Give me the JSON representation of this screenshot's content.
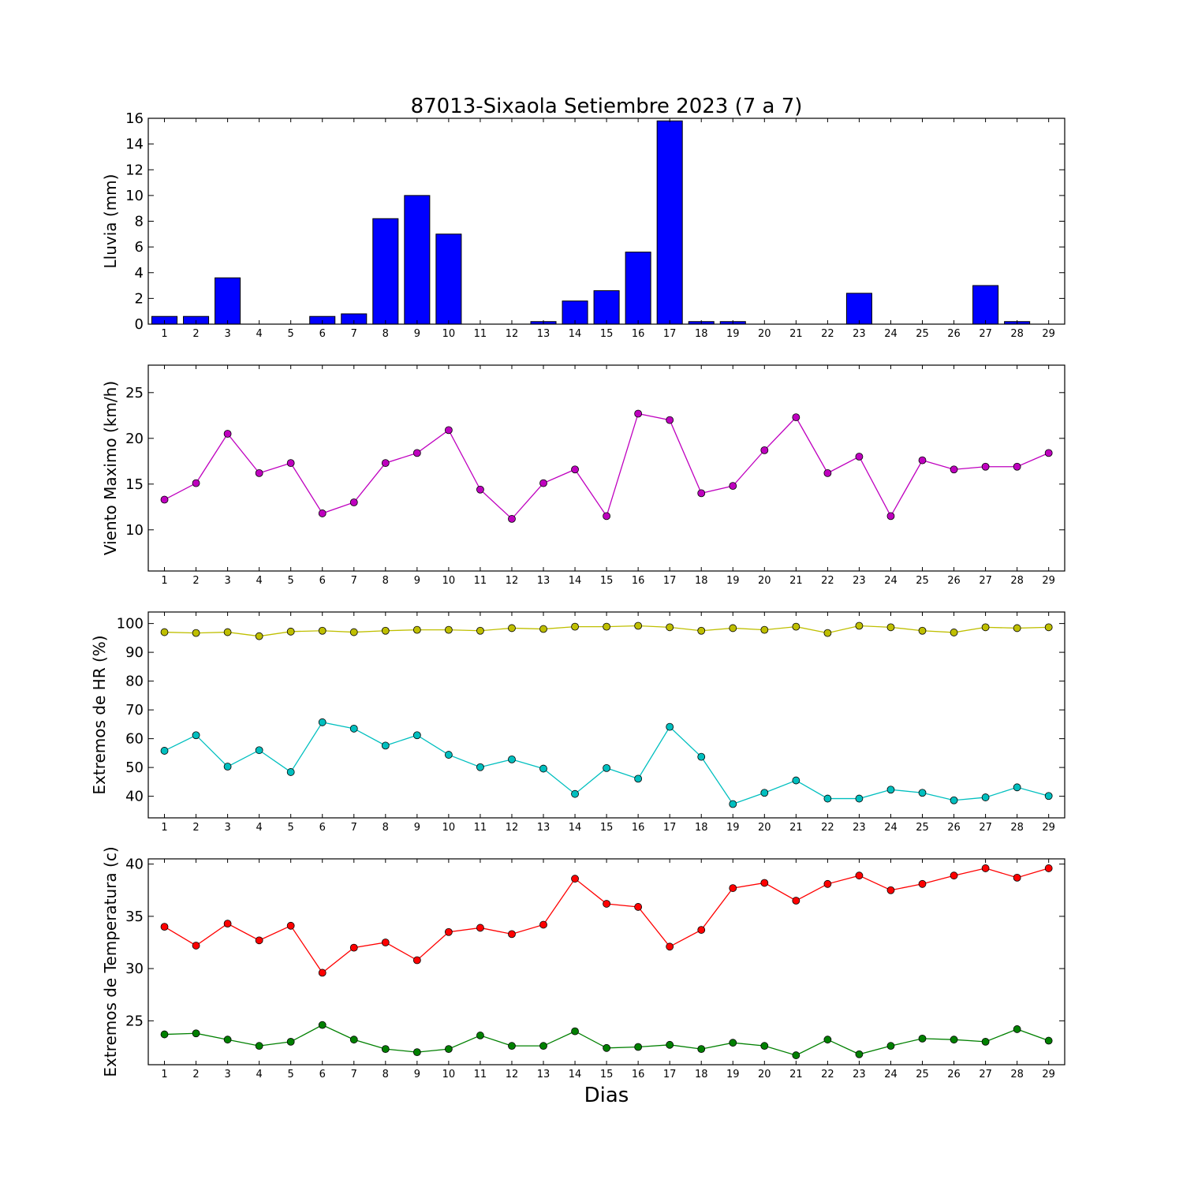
{
  "chart_data": [
    {
      "type": "bar",
      "title": "87013-Sixaola Setiembre 2023  (7 a 7)",
      "ylabel": "Lluvia (mm)",
      "xlabel": "",
      "ylim": [
        0,
        16
      ],
      "yticks": [
        0,
        2,
        4,
        6,
        8,
        10,
        12,
        14,
        16
      ],
      "categories": [
        "1",
        "2",
        "3",
        "4",
        "5",
        "6",
        "7",
        "8",
        "9",
        "10",
        "11",
        "12",
        "13",
        "14",
        "15",
        "16",
        "17",
        "18",
        "19",
        "20",
        "21",
        "22",
        "23",
        "24",
        "25",
        "26",
        "27",
        "28",
        "29"
      ],
      "values": [
        0.6,
        0.6,
        3.6,
        0.0,
        0.0,
        0.6,
        0.8,
        8.2,
        10.0,
        7.0,
        0.0,
        0.0,
        0.2,
        1.8,
        2.6,
        5.6,
        15.8,
        0.2,
        0.2,
        0.0,
        0.0,
        0.0,
        2.4,
        0.0,
        0.0,
        0.0,
        3.0,
        0.2,
        0.0
      ],
      "color": "#0000ff"
    },
    {
      "type": "line",
      "ylabel": "Viento Maximo (km/h)",
      "xlabel": "",
      "ylim": [
        5.5,
        28
      ],
      "yticks": [
        10,
        15,
        20,
        25
      ],
      "categories": [
        "1",
        "2",
        "3",
        "4",
        "5",
        "6",
        "7",
        "8",
        "9",
        "10",
        "11",
        "12",
        "13",
        "14",
        "15",
        "16",
        "17",
        "18",
        "19",
        "20",
        "21",
        "22",
        "23",
        "24",
        "25",
        "26",
        "27",
        "28",
        "29"
      ],
      "series": [
        {
          "color": "#bf00bf",
          "values": [
            13.3,
            15.1,
            20.5,
            16.2,
            17.3,
            11.8,
            13.0,
            17.3,
            18.4,
            20.9,
            14.4,
            11.2,
            15.1,
            16.6,
            11.5,
            22.7,
            22.0,
            14.0,
            14.8,
            18.7,
            22.3,
            16.2,
            18.0,
            11.5,
            17.6,
            16.6,
            16.9,
            16.9,
            18.4
          ]
        }
      ]
    },
    {
      "type": "line",
      "ylabel": "Extremos de HR (%)",
      "xlabel": "",
      "ylim": [
        32.5,
        104
      ],
      "yticks": [
        40,
        50,
        60,
        70,
        80,
        90,
        100
      ],
      "categories": [
        "1",
        "2",
        "3",
        "4",
        "5",
        "6",
        "7",
        "8",
        "9",
        "10",
        "11",
        "12",
        "13",
        "14",
        "15",
        "16",
        "17",
        "18",
        "19",
        "20",
        "21",
        "22",
        "23",
        "24",
        "25",
        "26",
        "27",
        "28",
        "29"
      ],
      "series": [
        {
          "color": "#bfbf00",
          "values": [
            97,
            96.7,
            97,
            95.6,
            97.2,
            97.5,
            97,
            97.5,
            97.8,
            97.8,
            97.5,
            98.4,
            98.1,
            98.9,
            98.9,
            99.2,
            98.7,
            97.5,
            98.4,
            97.8,
            98.9,
            96.7,
            99.2,
            98.7,
            97.5,
            96.9,
            98.7,
            98.4,
            98.7
          ]
        },
        {
          "color": "#00bfbf",
          "values": [
            55.8,
            61.2,
            50.3,
            56.0,
            48.4,
            65.7,
            63.5,
            57.6,
            61.2,
            54.4,
            50.1,
            52.8,
            49.6,
            40.8,
            49.8,
            46.1,
            64.1,
            53.7,
            37.3,
            41.2,
            45.5,
            39.2,
            39.2,
            42.3,
            41.2,
            38.6,
            39.6,
            43.1,
            40.1
          ]
        }
      ]
    },
    {
      "type": "line",
      "ylabel": "Extremos de Temperatura (c)",
      "xlabel": "Dias",
      "ylim": [
        20.8,
        40.5
      ],
      "yticks": [
        25,
        30,
        35,
        40
      ],
      "categories": [
        "1",
        "2",
        "3",
        "4",
        "5",
        "6",
        "7",
        "8",
        "9",
        "10",
        "11",
        "12",
        "13",
        "14",
        "15",
        "16",
        "17",
        "18",
        "19",
        "20",
        "21",
        "22",
        "23",
        "24",
        "25",
        "26",
        "27",
        "28",
        "29"
      ],
      "series": [
        {
          "color": "#ff0000",
          "values": [
            34.0,
            32.2,
            34.3,
            32.7,
            34.1,
            29.6,
            32.0,
            32.5,
            30.8,
            33.5,
            33.9,
            33.3,
            34.2,
            38.6,
            36.2,
            35.9,
            32.1,
            33.7,
            37.7,
            38.2,
            36.5,
            38.1,
            38.9,
            37.5,
            38.1,
            38.9,
            39.6,
            38.7,
            39.6
          ]
        },
        {
          "color": "#008000",
          "values": [
            23.7,
            23.8,
            23.2,
            22.6,
            23.0,
            24.6,
            23.2,
            22.3,
            22.0,
            22.3,
            23.6,
            22.6,
            22.6,
            24.0,
            22.4,
            22.5,
            22.7,
            22.3,
            22.9,
            22.6,
            21.7,
            23.2,
            21.8,
            22.6,
            23.3,
            23.2,
            23.0,
            24.2,
            23.1
          ]
        }
      ]
    }
  ]
}
